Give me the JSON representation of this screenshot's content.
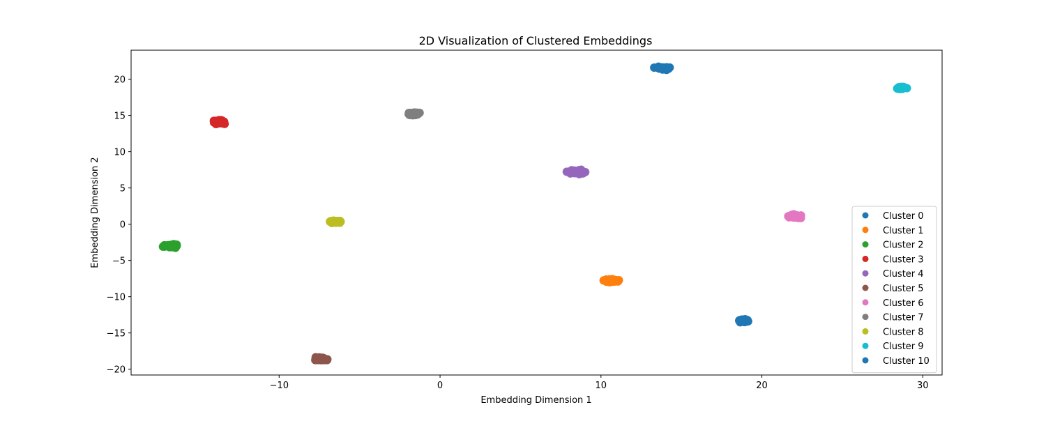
{
  "chart_data": {
    "type": "scatter",
    "title": "2D Visualization of Clustered Embeddings",
    "xlabel": "Embedding Dimension 1",
    "ylabel": "Embedding Dimension 2",
    "xlim": [
      -19.2,
      31.2
    ],
    "ylim": [
      -20.8,
      24
    ],
    "xticks": [
      -10,
      0,
      10,
      20,
      30
    ],
    "yticks": [
      -20,
      -15,
      -10,
      -5,
      0,
      5,
      10,
      15,
      20
    ],
    "grid": false,
    "legend_position": "lower-right",
    "series": [
      {
        "name": "Cluster 0",
        "color": "#1f77b4",
        "center": [
          13.9,
          21.5
        ],
        "spread": [
          0.45,
          0.2
        ]
      },
      {
        "name": "Cluster 1",
        "color": "#ff7f0e",
        "center": [
          10.6,
          -7.8
        ],
        "spread": [
          0.45,
          0.2
        ]
      },
      {
        "name": "Cluster 2",
        "color": "#2ca02c",
        "center": [
          -16.7,
          -3.0
        ],
        "spread": [
          0.4,
          0.2
        ]
      },
      {
        "name": "Cluster 3",
        "color": "#d62728",
        "center": [
          -13.7,
          14.1
        ],
        "spread": [
          0.4,
          0.25
        ]
      },
      {
        "name": "Cluster 4",
        "color": "#9467bd",
        "center": [
          8.5,
          7.2
        ],
        "spread": [
          0.5,
          0.25
        ]
      },
      {
        "name": "Cluster 5",
        "color": "#8c564b",
        "center": [
          -7.4,
          -18.6
        ],
        "spread": [
          0.45,
          0.2
        ]
      },
      {
        "name": "Cluster 6",
        "color": "#e377c2",
        "center": [
          22.0,
          1.1
        ],
        "spread": [
          0.4,
          0.25
        ]
      },
      {
        "name": "Cluster 7",
        "color": "#7f7f7f",
        "center": [
          -1.7,
          15.2
        ],
        "spread": [
          0.35,
          0.2
        ]
      },
      {
        "name": "Cluster 8",
        "color": "#bcbd22",
        "center": [
          -6.5,
          0.3
        ],
        "spread": [
          0.35,
          0.2
        ]
      },
      {
        "name": "Cluster 9",
        "color": "#17becf",
        "center": [
          28.7,
          18.8
        ],
        "spread": [
          0.25,
          0.15
        ]
      },
      {
        "name": "Cluster 10",
        "color": "#1f77b4",
        "center": [
          18.8,
          -13.3
        ],
        "spread": [
          0.3,
          0.2
        ]
      }
    ]
  }
}
